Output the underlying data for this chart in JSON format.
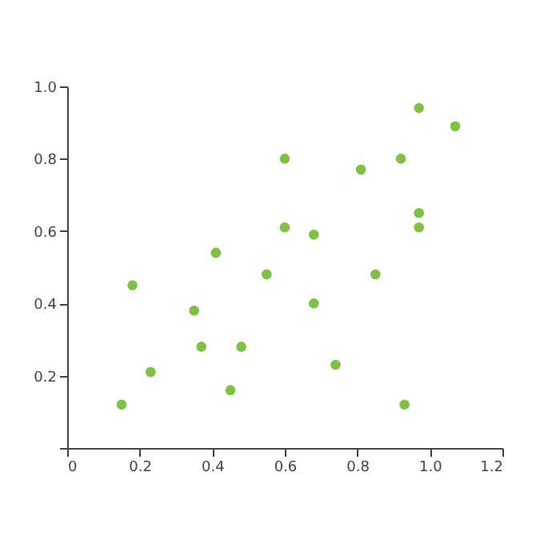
{
  "chart_data": {
    "type": "scatter",
    "x": [
      0.15,
      0.18,
      0.23,
      0.35,
      0.37,
      0.41,
      0.45,
      0.48,
      0.55,
      0.6,
      0.6,
      0.68,
      0.68,
      0.74,
      0.81,
      0.85,
      0.92,
      0.93,
      0.97,
      0.97,
      0.97,
      1.07
    ],
    "series": [
      {
        "color": "#7dc242",
        "values": [
          0.12,
          0.45,
          0.21,
          0.38,
          0.28,
          0.54,
          0.16,
          0.28,
          0.48,
          0.8,
          0.61,
          0.59,
          0.4,
          0.23,
          0.77,
          0.48,
          0.8,
          0.12,
          0.94,
          0.65,
          0.61,
          0.89
        ]
      }
    ],
    "xlim": [
      0,
      1.2
    ],
    "ylim": [
      0,
      1.0
    ],
    "xticks": [
      0,
      0.2,
      0.4,
      0.6,
      0.8,
      {
        "value": 1.0,
        "label": "1.0"
      },
      1.2
    ],
    "yticks": [
      {
        "value": 0,
        "label": null
      },
      0.2,
      0.4,
      0.6,
      0.8,
      {
        "value": 1.0,
        "label": "1.0"
      }
    ],
    "grid": false
  }
}
